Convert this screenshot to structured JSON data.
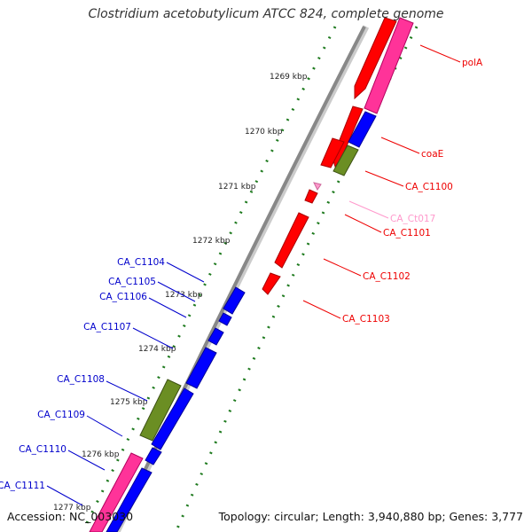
{
  "title": "Clostridium acetobutylicum ATCC 824, complete genome",
  "footer": {
    "accession": "Accession: NC_003030",
    "topology": "Topology: circular; Length: 3,940,880 bp; Genes: 3,777"
  },
  "colors": {
    "backbone": "#999999",
    "tick": "#1e7a1e",
    "gene_red": "#ff0000",
    "gene_blue": "#0000ff",
    "gene_pink": "#ff3399",
    "gene_olive": "#6b8e23",
    "trna_pink": "#ff99cc"
  },
  "ticks": [
    "1269 kbp",
    "1270 kbp",
    "1271 kbp",
    "1272 kbp",
    "1273 kbp",
    "1274 kbp",
    "1275 kbp",
    "1276 kbp",
    "1277 kbp"
  ],
  "labels": [
    {
      "text": "polA",
      "color": "#ee0000"
    },
    {
      "text": "coaE",
      "color": "#ee0000"
    },
    {
      "text": "CA_C1100",
      "color": "#ee0000"
    },
    {
      "text": "CA_Ct017",
      "color": "#ff99cc"
    },
    {
      "text": "CA_C1101",
      "color": "#ee0000"
    },
    {
      "text": "CA_C1102",
      "color": "#ee0000"
    },
    {
      "text": "CA_C1103",
      "color": "#ee0000"
    },
    {
      "text": "CA_C1104",
      "color": "#0000cc"
    },
    {
      "text": "CA_C1105",
      "color": "#0000cc"
    },
    {
      "text": "CA_C1106",
      "color": "#0000cc"
    },
    {
      "text": "CA_C1107",
      "color": "#0000cc"
    },
    {
      "text": "CA_C1108",
      "color": "#0000cc"
    },
    {
      "text": "CA_C1109",
      "color": "#0000cc"
    },
    {
      "text": "CA_C1110",
      "color": "#0000cc"
    },
    {
      "text": "CA_C1111",
      "color": "#0000cc"
    }
  ]
}
